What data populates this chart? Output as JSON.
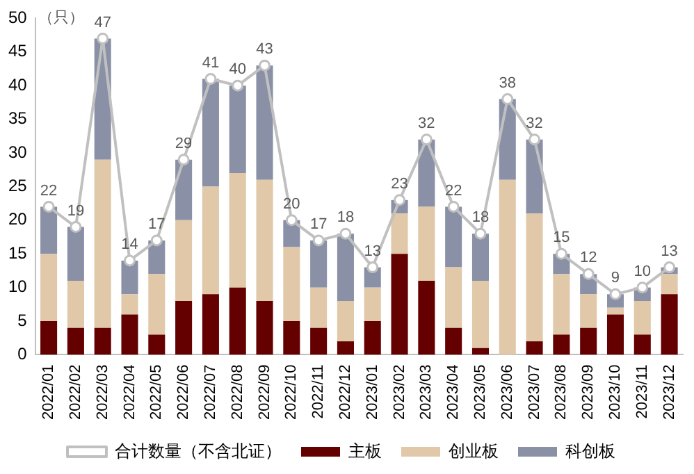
{
  "chart_data": {
    "type": "bar",
    "stacked": true,
    "ylabel": "（只）",
    "categories": [
      "2022/01",
      "2022/02",
      "2022/03",
      "2022/04",
      "2022/05",
      "2022/06",
      "2022/07",
      "2022/08",
      "2022/09",
      "2022/10",
      "2022/11",
      "2022/12",
      "2023/01",
      "2023/02",
      "2023/03",
      "2023/04",
      "2023/05",
      "2023/06",
      "2023/07",
      "2023/08",
      "2023/09",
      "2023/10",
      "2023/11",
      "2023/12"
    ],
    "series": [
      {
        "name": "主板",
        "color": "#650000",
        "values": [
          5,
          4,
          4,
          6,
          3,
          8,
          9,
          10,
          8,
          5,
          4,
          2,
          5,
          15,
          11,
          4,
          1,
          0,
          2,
          3,
          4,
          6,
          3,
          9
        ]
      },
      {
        "name": "创业板",
        "color": "#e0c8a8",
        "values": [
          10,
          7,
          25,
          3,
          9,
          12,
          16,
          17,
          18,
          11,
          6,
          6,
          5,
          6,
          11,
          9,
          10,
          26,
          19,
          9,
          5,
          1,
          5,
          3
        ]
      },
      {
        "name": "科创板",
        "color": "#8a90a6",
        "values": [
          7,
          8,
          18,
          5,
          5,
          9,
          16,
          13,
          17,
          4,
          7,
          10,
          3,
          2,
          10,
          9,
          7,
          12,
          11,
          3,
          3,
          2,
          2,
          1
        ]
      },
      {
        "name": "合计数量（不含北证）",
        "type": "line",
        "color": "#c0c0c0",
        "marker": "circle",
        "values": [
          22,
          19,
          47,
          14,
          17,
          29,
          41,
          40,
          43,
          20,
          17,
          18,
          13,
          23,
          32,
          22,
          18,
          38,
          32,
          15,
          12,
          9,
          10,
          13
        ],
        "value_labels": [
          "22",
          "19",
          "47",
          "14",
          "17",
          "29",
          "41",
          "40",
          "43",
          "20",
          "17",
          "18",
          "13",
          "23",
          "32",
          "22",
          "18",
          "38",
          "32",
          "15",
          "12",
          "9",
          "10",
          "13"
        ]
      }
    ],
    "ylim": [
      0,
      50
    ],
    "yticks": [
      0,
      5,
      10,
      15,
      20,
      25,
      30,
      35,
      40,
      45,
      50
    ],
    "grid": false,
    "legend": "bottom"
  }
}
